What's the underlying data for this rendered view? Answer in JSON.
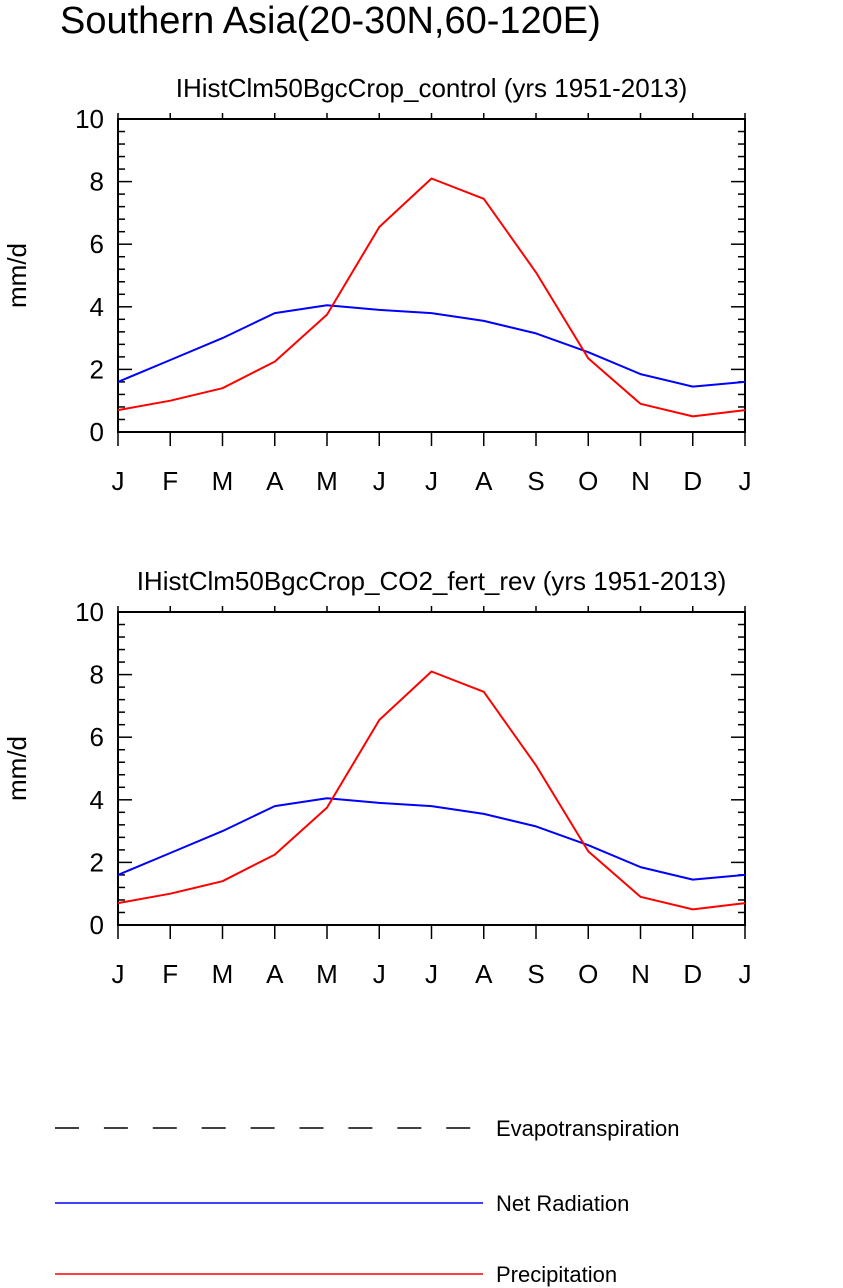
{
  "page": {
    "title": "Southern Asia(20-30N,60-120E)"
  },
  "chart_data": [
    {
      "type": "line",
      "title": "IHistClm50BgcCrop_control (yrs 1951-2013)",
      "xlabel": "",
      "ylabel": "mm/d",
      "ylim": [
        0,
        10
      ],
      "yticks": [
        0,
        2,
        4,
        6,
        8,
        10
      ],
      "categories": [
        "J",
        "F",
        "M",
        "A",
        "M",
        "J",
        "J",
        "A",
        "S",
        "O",
        "N",
        "D",
        "J"
      ],
      "grid": false,
      "series": [
        {
          "name": "Net Radiation",
          "color": "#0000ff",
          "values": [
            1.6,
            2.3,
            3.0,
            3.8,
            4.05,
            3.9,
            3.8,
            3.55,
            3.15,
            2.55,
            1.85,
            1.45,
            1.6
          ]
        },
        {
          "name": "Precipitation",
          "color": "#ff0000",
          "values": [
            0.7,
            1.0,
            1.4,
            2.25,
            3.75,
            6.55,
            8.1,
            7.45,
            5.1,
            2.35,
            0.9,
            0.5,
            0.7
          ]
        }
      ]
    },
    {
      "type": "line",
      "title": "IHistClm50BgcCrop_CO2_fert_rev (yrs 1951-2013)",
      "xlabel": "",
      "ylabel": "mm/d",
      "ylim": [
        0,
        10
      ],
      "yticks": [
        0,
        2,
        4,
        6,
        8,
        10
      ],
      "categories": [
        "J",
        "F",
        "M",
        "A",
        "M",
        "J",
        "J",
        "A",
        "S",
        "O",
        "N",
        "D",
        "J"
      ],
      "grid": false,
      "series": [
        {
          "name": "Net Radiation",
          "color": "#0000ff",
          "values": [
            1.6,
            2.3,
            3.0,
            3.8,
            4.05,
            3.9,
            3.8,
            3.55,
            3.15,
            2.55,
            1.85,
            1.45,
            1.6
          ]
        },
        {
          "name": "Precipitation",
          "color": "#ff0000",
          "values": [
            0.7,
            1.0,
            1.4,
            2.25,
            3.75,
            6.55,
            8.1,
            7.45,
            5.1,
            2.35,
            0.9,
            0.5,
            0.7
          ]
        }
      ]
    }
  ],
  "legend": {
    "items": [
      {
        "label": "Evapotranspiration",
        "color": "#000000",
        "style": "dashed"
      },
      {
        "label": "Net Radiation",
        "color": "#0000ff",
        "style": "solid"
      },
      {
        "label": "Precipitation",
        "color": "#ff0000",
        "style": "solid"
      }
    ]
  }
}
